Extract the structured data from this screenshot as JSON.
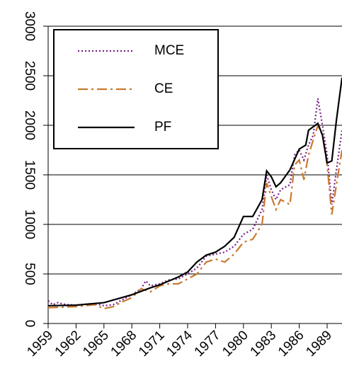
{
  "chart_data": {
    "type": "line",
    "x_placeholder": null,
    "series": [
      {
        "name": "MCE",
        "color": "#7b1f8c",
        "linestyle": "dotted",
        "x": [
          1959,
          1959.5,
          1960,
          1961,
          1962,
          1963,
          1964,
          1965,
          1966,
          1967,
          1968,
          1969,
          1969.5,
          1970,
          1971,
          1972,
          1973,
          1974,
          1975,
          1976,
          1977,
          1978,
          1979,
          1980,
          1981,
          1982,
          1982.5,
          1983,
          1983.5,
          1984,
          1985,
          1985.5,
          1986,
          1986.5,
          1987,
          1987.5,
          1988,
          1988.5,
          1989,
          1989.5,
          1990,
          1990.6
        ],
        "values": [
          230,
          190,
          210,
          190,
          185,
          195,
          200,
          180,
          190,
          240,
          290,
          350,
          430,
          380,
          400,
          440,
          450,
          500,
          560,
          680,
          700,
          720,
          780,
          900,
          950,
          1150,
          1500,
          1350,
          1250,
          1350,
          1400,
          1700,
          1750,
          1650,
          1800,
          1900,
          2270,
          2000,
          1700,
          1200,
          1550,
          1950
        ]
      },
      {
        "name": "CE",
        "color": "#c87a2e",
        "linestyle": "dashdot",
        "x": [
          1959,
          1962,
          1964,
          1965,
          1966,
          1967,
          1968,
          1969,
          1970,
          1971,
          1972,
          1973,
          1974,
          1975,
          1976,
          1977,
          1978,
          1979,
          1980,
          1981,
          1982,
          1982.5,
          1983,
          1983.5,
          1984,
          1985,
          1985.5,
          1986,
          1986.5,
          1987,
          1987.5,
          1988,
          1988.5,
          1989,
          1989.5,
          1990,
          1990.6
        ],
        "values": [
          160,
          170,
          190,
          150,
          170,
          220,
          260,
          350,
          320,
          380,
          400,
          400,
          450,
          500,
          620,
          650,
          620,
          700,
          820,
          850,
          1000,
          1420,
          1280,
          1150,
          1250,
          1200,
          1600,
          1650,
          1450,
          1700,
          1850,
          2000,
          1900,
          1600,
          1100,
          1400,
          1750
        ]
      },
      {
        "name": "PF",
        "color": "#000000",
        "linestyle": "solid",
        "x": [
          1959,
          1962,
          1965,
          1968,
          1970,
          1971,
          1973,
          1974,
          1975,
          1976,
          1977,
          1978,
          1979,
          1980,
          1981,
          1982,
          1982.5,
          1983,
          1983.5,
          1984,
          1985,
          1986,
          1986.7,
          1987,
          1988,
          1988.5,
          1989,
          1989.5,
          1990,
          1990.6
        ],
        "values": [
          180,
          185,
          210,
          290,
          360,
          390,
          470,
          520,
          620,
          690,
          720,
          780,
          870,
          1080,
          1080,
          1250,
          1540,
          1480,
          1380,
          1420,
          1550,
          1760,
          1800,
          1950,
          2020,
          1900,
          1620,
          1640,
          2050,
          2480
        ]
      }
    ],
    "xlim": [
      1959,
      1990.6
    ],
    "xticks": [
      1959,
      1962,
      1965,
      1968,
      1971,
      1974,
      1977,
      1980,
      1983,
      1986,
      1989
    ],
    "ylim": [
      0,
      3000
    ],
    "yticks": [
      0,
      500,
      1000,
      1500,
      2000,
      2500,
      3000
    ],
    "grid": true,
    "legend": "upper left"
  }
}
